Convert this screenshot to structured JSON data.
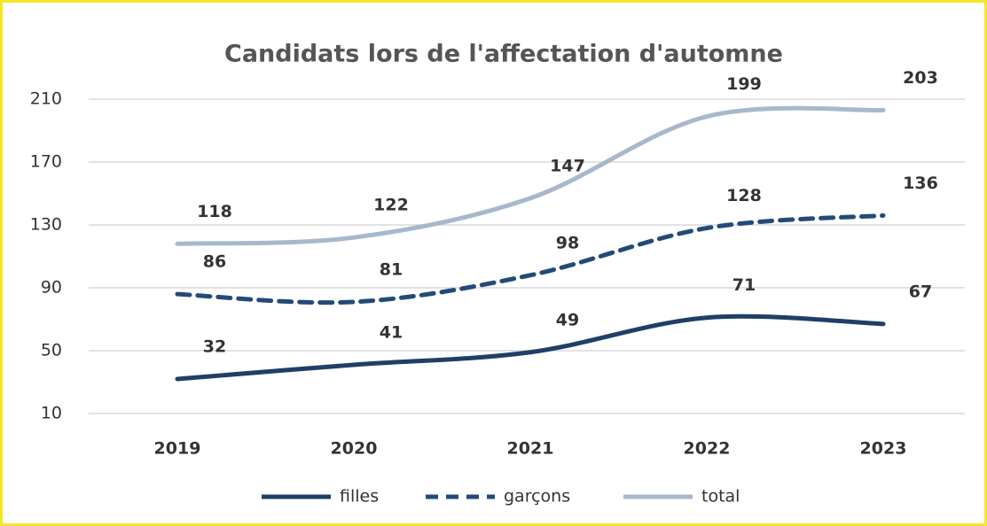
{
  "chart_data": {
    "type": "line",
    "title": "Candidats lors de l'affectation d'automne",
    "x": [
      2019,
      2020,
      2021,
      2022,
      2023
    ],
    "series": [
      {
        "name": "filles",
        "color": "#1f3f66",
        "dashed": false,
        "values": [
          32,
          41,
          49,
          71,
          67
        ]
      },
      {
        "name": "garçons",
        "color": "#234a78",
        "dashed": true,
        "values": [
          86,
          81,
          98,
          128,
          136
        ]
      },
      {
        "name": "total",
        "color": "#a7b8cc",
        "dashed": false,
        "values": [
          118,
          122,
          147,
          199,
          203
        ]
      }
    ],
    "ylim": [
      10,
      210
    ],
    "yticks": [
      10,
      50,
      90,
      130,
      170,
      210
    ],
    "grid": true,
    "legend": "bottom",
    "smooth": true
  }
}
